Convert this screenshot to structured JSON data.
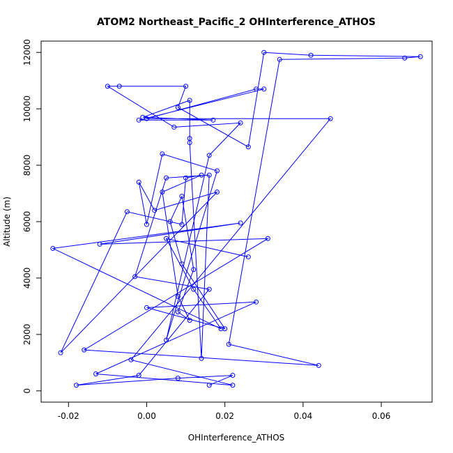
{
  "chart_data": {
    "type": "line",
    "title": "ATOM2 Northeast_Pacific_2 OHInterference_ATHOS",
    "xlabel": "OHInterference_ATHOS",
    "ylabel": "Altitude (m)",
    "xlim": [
      -0.027,
      0.073
    ],
    "ylim": [
      -400,
      12400
    ],
    "x_ticks": [
      -0.02,
      0.0,
      0.02,
      0.04,
      0.06
    ],
    "x_tick_labels": [
      "-0.02",
      "0.00",
      "0.02",
      "0.04",
      "0.06"
    ],
    "y_ticks": [
      0,
      2000,
      4000,
      6000,
      8000,
      10000,
      12000
    ],
    "y_tick_labels": [
      "0",
      "2000",
      "4000",
      "6000",
      "8000",
      "10000",
      "12000"
    ],
    "grid": false,
    "series": [
      {
        "color": "#0000ff",
        "marker": "open-circle",
        "points": [
          [
            0.016,
            200
          ],
          [
            0.022,
            550
          ],
          [
            0.008,
            450
          ],
          [
            -0.018,
            200
          ],
          [
            -0.002,
            550
          ],
          [
            0.016,
            3600
          ],
          [
            -0.003,
            4050
          ],
          [
            0.005,
            7550
          ],
          [
            0.016,
            7650
          ],
          [
            0.014,
            1150
          ],
          [
            0.011,
            8800
          ],
          [
            0.011,
            8950
          ],
          [
            0.011,
            10300
          ],
          [
            -0.001,
            9700
          ],
          [
            0.017,
            9600
          ],
          [
            -0.002,
            9600
          ],
          [
            0.03,
            10700
          ],
          [
            0.028,
            10700
          ],
          [
            0.0,
            9650
          ],
          [
            0.047,
            9650
          ],
          [
            -0.004,
            1100
          ],
          [
            0.022,
            200
          ],
          [
            -0.013,
            600
          ],
          [
            0.028,
            3150
          ],
          [
            0.0,
            2950
          ],
          [
            0.02,
            2200
          ],
          [
            0.009,
            4500
          ],
          [
            0.006,
            6000
          ],
          [
            0.009,
            6900
          ],
          [
            0.012,
            4300
          ],
          [
            0.008,
            2800
          ],
          [
            0.011,
            2500
          ],
          [
            0.008,
            3350
          ],
          [
            0.004,
            7050
          ],
          [
            0.014,
            7650
          ],
          [
            0.01,
            7550
          ],
          [
            0.009,
            5900
          ],
          [
            -0.005,
            6350
          ],
          [
            -0.022,
            1350
          ],
          [
            0.018,
            7050
          ],
          [
            0.002,
            6400
          ],
          [
            -0.002,
            7400
          ],
          [
            0.0,
            5900
          ],
          [
            0.004,
            8400
          ],
          [
            0.018,
            7800
          ],
          [
            0.005,
            1800
          ],
          [
            0.016,
            8350
          ],
          [
            0.024,
            9500
          ],
          [
            0.007,
            9350
          ],
          [
            -0.01,
            10800
          ],
          [
            -0.007,
            10800
          ],
          [
            0.01,
            10800
          ],
          [
            0.008,
            10050
          ],
          [
            0.026,
            8650
          ],
          [
            0.03,
            12000
          ],
          [
            0.042,
            11900
          ],
          [
            0.07,
            11850
          ],
          [
            0.066,
            11800
          ],
          [
            0.034,
            11750
          ],
          [
            0.021,
            1650
          ],
          [
            0.044,
            900
          ],
          [
            -0.016,
            1450
          ],
          [
            0.031,
            5400
          ],
          [
            -0.012,
            5200
          ],
          [
            0.024,
            5950
          ],
          [
            -0.024,
            5050
          ],
          [
            0.019,
            2200
          ],
          [
            0.012,
            3600
          ],
          [
            0.005,
            5400
          ],
          [
            0.026,
            4750
          ]
        ]
      }
    ]
  }
}
